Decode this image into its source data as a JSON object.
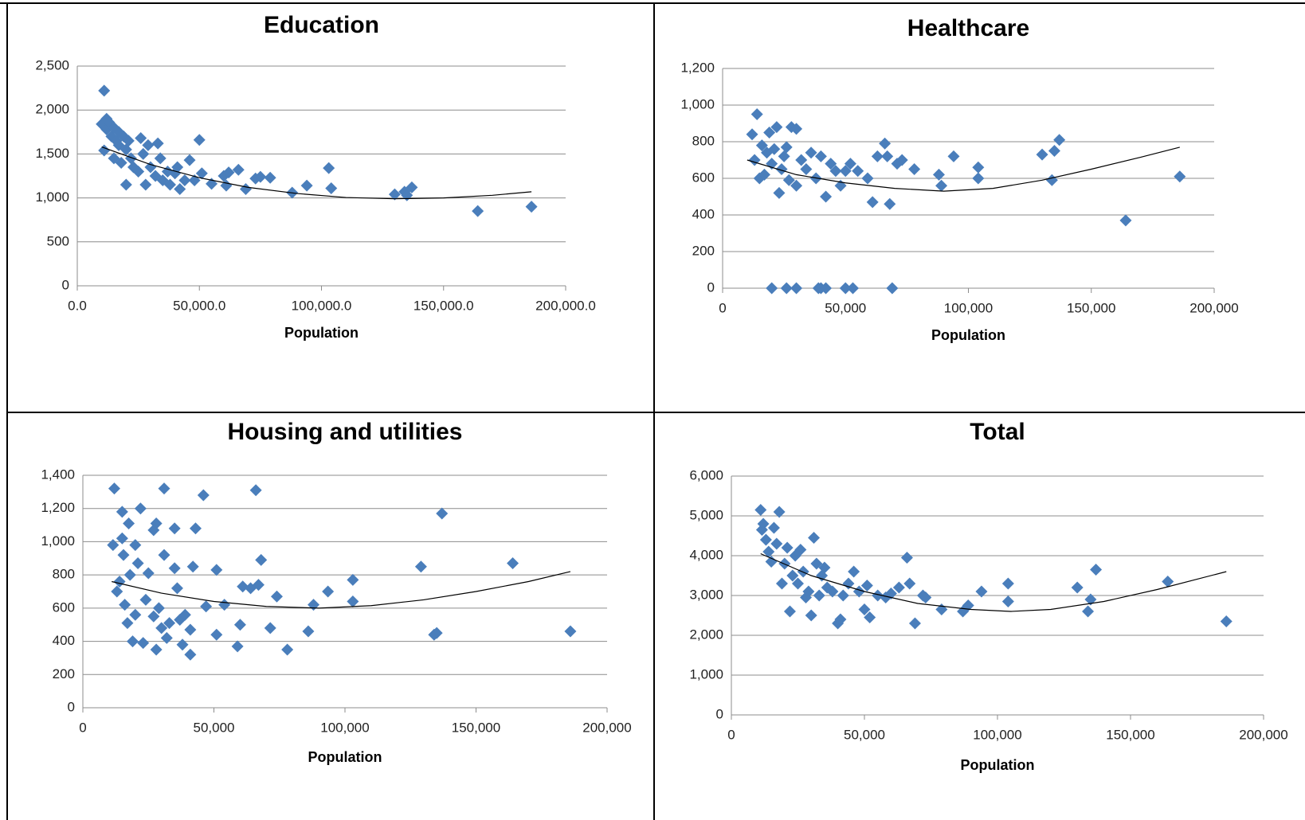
{
  "chart_data": [
    {
      "type": "scatter",
      "title": "Education",
      "xlabel": "Population",
      "color": "#4a7ebb",
      "grid": true,
      "xlim": [
        0,
        200000
      ],
      "ylim": [
        0,
        2500
      ],
      "xticks": [
        {
          "value": 0,
          "label": "0.0"
        },
        {
          "value": 50000,
          "label": "50,000.0"
        },
        {
          "value": 100000,
          "label": "100,000.0"
        },
        {
          "value": 150000,
          "label": "150,000.0"
        },
        {
          "value": 200000,
          "label": "200,000.0"
        }
      ],
      "yticks": [
        0,
        500,
        {
          "value": 1000,
          "label": "1,000"
        },
        {
          "value": 1500,
          "label": "1,500"
        },
        {
          "value": 2000,
          "label": "2,000"
        },
        {
          "value": 2500,
          "label": "2,500"
        }
      ],
      "x": [
        11000,
        10000,
        11000,
        12000,
        12000,
        13000,
        14000,
        15000,
        15000,
        16000,
        17000,
        17000,
        18000,
        19000,
        20000,
        20000,
        21000,
        22000,
        23000,
        25000,
        26000,
        27000,
        28000,
        29000,
        30000,
        32000,
        33000,
        34000,
        35000,
        37000,
        38000,
        40000,
        41000,
        42000,
        44000,
        46000,
        48000,
        50000,
        51000,
        55000,
        60000,
        61000,
        62000,
        66000,
        69000,
        73000,
        75000,
        79000,
        88000,
        94000,
        103000,
        104000,
        130000,
        134000,
        135000,
        137000,
        164000,
        186000
      ],
      "values": [
        2220,
        1840,
        1540,
        1900,
        1780,
        1860,
        1700,
        1800,
        1450,
        1650,
        1750,
        1600,
        1400,
        1700,
        1550,
        1150,
        1650,
        1450,
        1350,
        1300,
        1680,
        1500,
        1150,
        1600,
        1350,
        1250,
        1620,
        1450,
        1200,
        1300,
        1150,
        1280,
        1350,
        1100,
        1200,
        1430,
        1200,
        1660,
        1280,
        1160,
        1250,
        1140,
        1290,
        1320,
        1100,
        1220,
        1240,
        1230,
        1060,
        1140,
        1340,
        1110,
        1040,
        1070,
        1030,
        1120,
        850,
        900
      ],
      "trendline": {
        "x": [
          10000,
          30000,
          50000,
          70000,
          90000,
          110000,
          130000,
          150000,
          170000,
          186000
        ],
        "values": [
          1580,
          1380,
          1230,
          1120,
          1050,
          1005,
          990,
          1000,
          1030,
          1070
        ]
      }
    },
    {
      "type": "scatter",
      "title": "Healthcare",
      "xlabel": "Population",
      "color": "#4a7ebb",
      "grid": true,
      "xlim": [
        0,
        200000
      ],
      "ylim": [
        0,
        1200
      ],
      "xticks": [
        0,
        {
          "value": 50000,
          "label": "50,000"
        },
        {
          "value": 100000,
          "label": "100,000"
        },
        {
          "value": 150000,
          "label": "150,000"
        },
        {
          "value": 200000,
          "label": "200,000"
        }
      ],
      "yticks": [
        0,
        200,
        400,
        600,
        800,
        {
          "value": 1000,
          "label": "1,000"
        },
        {
          "value": 1200,
          "label": "1,200"
        }
      ],
      "x": [
        12000,
        13000,
        14000,
        15000,
        16000,
        17000,
        18000,
        19000,
        20000,
        21000,
        22000,
        23000,
        24000,
        25000,
        26000,
        27000,
        28000,
        30000,
        30000,
        32000,
        34000,
        36000,
        38000,
        40000,
        42000,
        44000,
        46000,
        48000,
        50000,
        52000,
        55000,
        59000,
        61000,
        63000,
        66000,
        67000,
        68000,
        71000,
        73000,
        78000,
        88000,
        89000,
        94000,
        104000,
        104000,
        130000,
        134000,
        135000,
        137000,
        164000,
        186000,
        20000,
        26000,
        30000,
        39000,
        40000,
        42000,
        50000,
        53000,
        69000
      ],
      "values": [
        840,
        700,
        950,
        600,
        780,
        620,
        740,
        850,
        680,
        760,
        880,
        520,
        650,
        720,
        770,
        590,
        880,
        870,
        560,
        700,
        650,
        740,
        600,
        720,
        500,
        680,
        640,
        560,
        640,
        680,
        640,
        600,
        470,
        720,
        790,
        720,
        460,
        680,
        700,
        650,
        620,
        560,
        720,
        660,
        600,
        730,
        590,
        750,
        810,
        370,
        610,
        0,
        0,
        0,
        0,
        0,
        0,
        0,
        0,
        0
      ],
      "trendline": {
        "x": [
          10000,
          30000,
          50000,
          70000,
          90000,
          110000,
          130000,
          150000,
          170000,
          186000
        ],
        "values": [
          700,
          620,
          575,
          545,
          530,
          545,
          590,
          650,
          715,
          770
        ]
      }
    },
    {
      "type": "scatter",
      "title": "Housing and utilities",
      "xlabel": "Population",
      "color": "#4a7ebb",
      "grid": true,
      "xlim": [
        0,
        200000
      ],
      "ylim": [
        0,
        1400
      ],
      "xticks": [
        0,
        {
          "value": 50000,
          "label": "50,000"
        },
        {
          "value": 100000,
          "label": "100,000"
        },
        {
          "value": 150000,
          "label": "150,000"
        },
        {
          "value": 200000,
          "label": "200,000"
        }
      ],
      "yticks": [
        0,
        200,
        400,
        600,
        800,
        {
          "value": 1000,
          "label": "1,000"
        },
        {
          "value": 1200,
          "label": "1,200"
        },
        {
          "value": 1400,
          "label": "1,400"
        }
      ],
      "x": [
        11500,
        12000,
        13000,
        14000,
        15000,
        15500,
        15000,
        16000,
        17000,
        17500,
        18000,
        19000,
        20000,
        20000,
        21000,
        22000,
        23000,
        24000,
        25000,
        27000,
        27000,
        28000,
        28000,
        29000,
        30000,
        31000,
        31000,
        32000,
        33000,
        35000,
        35000,
        36000,
        37000,
        38000,
        39000,
        41000,
        41000,
        42000,
        43000,
        46000,
        47000,
        51000,
        51000,
        54000,
        59000,
        60000,
        61000,
        64000,
        66000,
        67000,
        68000,
        71500,
        74000,
        78000,
        86000,
        88000,
        93500,
        103000,
        103000,
        129000,
        134000,
        135000,
        137000,
        164000,
        186000
      ],
      "values": [
        980,
        1320,
        700,
        760,
        1180,
        920,
        1020,
        620,
        510,
        1110,
        800,
        400,
        980,
        560,
        870,
        1200,
        390,
        650,
        810,
        1070,
        550,
        1110,
        350,
        600,
        480,
        1320,
        920,
        420,
        510,
        1080,
        840,
        720,
        530,
        380,
        560,
        320,
        470,
        850,
        1080,
        1280,
        610,
        440,
        830,
        620,
        370,
        500,
        730,
        720,
        1310,
        740,
        890,
        480,
        670,
        350,
        460,
        620,
        700,
        770,
        640,
        850,
        440,
        450,
        1170,
        870,
        460
      ],
      "trendline": {
        "x": [
          11000,
          30000,
          50000,
          70000,
          90000,
          110000,
          130000,
          150000,
          170000,
          186000
        ],
        "values": [
          760,
          690,
          640,
          610,
          600,
          615,
          650,
          700,
          760,
          820
        ]
      }
    },
    {
      "type": "scatter",
      "title": "Total",
      "xlabel": "Population",
      "color": "#4a7ebb",
      "grid": true,
      "xlim": [
        0,
        200000
      ],
      "ylim": [
        0,
        6000
      ],
      "xticks": [
        0,
        {
          "value": 50000,
          "label": "50,000"
        },
        {
          "value": 100000,
          "label": "100,000"
        },
        {
          "value": 150000,
          "label": "150,000"
        },
        {
          "value": 200000,
          "label": "200,000"
        }
      ],
      "yticks": [
        0,
        {
          "value": 1000,
          "label": "1,000"
        },
        {
          "value": 2000,
          "label": "2,000"
        },
        {
          "value": 3000,
          "label": "3,000"
        },
        {
          "value": 4000,
          "label": "4,000"
        },
        {
          "value": 5000,
          "label": "5,000"
        },
        {
          "value": 6000,
          "label": "6,000"
        }
      ],
      "x": [
        11000,
        11500,
        12000,
        13000,
        14000,
        15000,
        16000,
        17000,
        18000,
        19000,
        20000,
        21000,
        22000,
        23000,
        24000,
        25000,
        26000,
        27000,
        28000,
        29000,
        30000,
        31000,
        32000,
        33000,
        34000,
        35000,
        36000,
        38000,
        40000,
        41000,
        42000,
        44000,
        46000,
        48000,
        50000,
        51000,
        52000,
        55000,
        58000,
        60000,
        63000,
        66000,
        67000,
        69000,
        72000,
        73000,
        79000,
        87000,
        89000,
        94000,
        104000,
        104000,
        130000,
        134000,
        135000,
        137000,
        164000,
        186000
      ],
      "values": [
        5150,
        4650,
        4800,
        4400,
        4100,
        3850,
        4700,
        4300,
        5100,
        3300,
        3800,
        4200,
        2600,
        3500,
        4000,
        3300,
        4150,
        3600,
        2950,
        3100,
        2500,
        4450,
        3800,
        3000,
        3500,
        3700,
        3200,
        3100,
        2300,
        2400,
        3000,
        3300,
        3600,
        3100,
        2650,
        3250,
        2450,
        3000,
        2950,
        3050,
        3200,
        3950,
        3300,
        2300,
        3000,
        2950,
        2650,
        2600,
        2750,
        3100,
        3300,
        2850,
        3200,
        2600,
        2900,
        3650,
        3350,
        2350
      ],
      "trendline": {
        "x": [
          11000,
          30000,
          50000,
          70000,
          90000,
          105000,
          120000,
          140000,
          160000,
          186000
        ],
        "values": [
          4050,
          3500,
          3100,
          2800,
          2650,
          2600,
          2650,
          2850,
          3150,
          3600
        ]
      }
    }
  ]
}
